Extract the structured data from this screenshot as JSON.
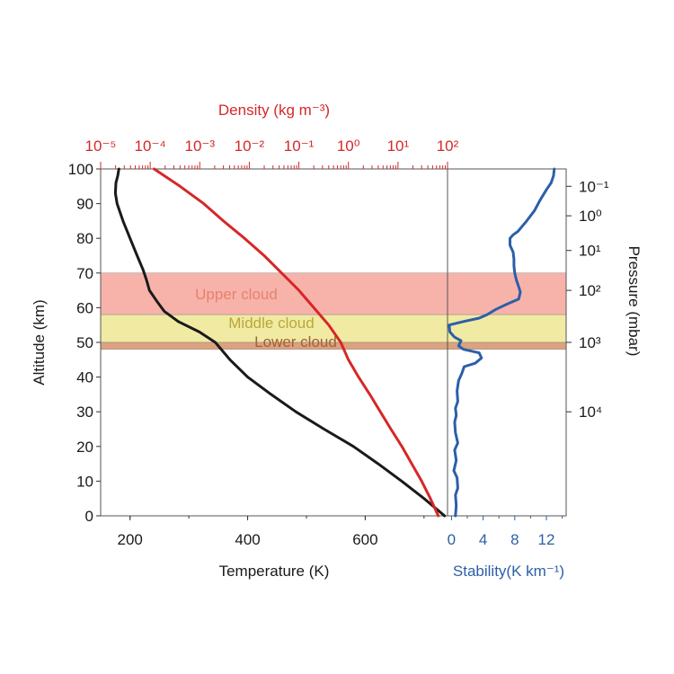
{
  "chart_data": {
    "type": "line",
    "colors": {
      "temperature": "#1a1a1a",
      "density": "#d62728",
      "stability": "#2c5fa8",
      "upper_cloud": "#f7b3aa",
      "middle_cloud": "#f1eaa3",
      "lower_cloud": "#dca27e",
      "upper_cloud_label": "#e8806f",
      "middle_cloud_label": "#b8a838",
      "lower_cloud_label": "#a0603a"
    },
    "ylabel": "Altitude (km)",
    "ylim": [
      0,
      100
    ],
    "yticks": [
      "0",
      "10",
      "20",
      "30",
      "40",
      "50",
      "60",
      "70",
      "80",
      "90",
      "100"
    ],
    "temperature_axis": {
      "label": "Temperature (K)",
      "xlim": [
        150,
        740
      ],
      "ticks": [
        "200",
        "400",
        "600"
      ]
    },
    "density_axis": {
      "label": "Density (kg m⁻³)",
      "scale": "log",
      "xlim": [
        1e-05,
        100
      ],
      "ticks": [
        "10⁻⁵",
        "10⁻⁴",
        "10⁻³",
        "10⁻²",
        "10⁻¹",
        "10⁰",
        "10¹",
        "10²"
      ]
    },
    "stability_axis": {
      "label": "Stability(K km⁻¹)",
      "xlim": [
        -0.5,
        14.5
      ],
      "ticks": [
        "0",
        "4",
        "8",
        "12"
      ]
    },
    "pressure_axis": {
      "label": "Pressure (mbar)",
      "ticks": [
        {
          "label": "10⁻¹",
          "altitude": 95
        },
        {
          "label": "10⁰",
          "altitude": 86.5
        },
        {
          "label": "10¹",
          "altitude": 76.5
        },
        {
          "label": "10²",
          "altitude": 65
        },
        {
          "label": "10³",
          "altitude": 50
        },
        {
          "label": "10⁴",
          "altitude": 30
        }
      ]
    },
    "cloud_layers": [
      {
        "name": "Upper cloud",
        "bottom": 58,
        "top": 70
      },
      {
        "name": "Middle cloud",
        "bottom": 50,
        "top": 58
      },
      {
        "name": "Lower cloud",
        "bottom": 48,
        "top": 50
      }
    ],
    "series": [
      {
        "name": "Temperature",
        "axis": "temperature",
        "points": [
          [
            735,
            0
          ],
          [
            700,
            5
          ],
          [
            662,
            10
          ],
          [
            622,
            15
          ],
          [
            580,
            20
          ],
          [
            530,
            25
          ],
          [
            482,
            30
          ],
          [
            440,
            35
          ],
          [
            400,
            40
          ],
          [
            370,
            45
          ],
          [
            345,
            50
          ],
          [
            318,
            53
          ],
          [
            282,
            56
          ],
          [
            258,
            59
          ],
          [
            245,
            62
          ],
          [
            233,
            65
          ],
          [
            228,
            68
          ],
          [
            222,
            71
          ],
          [
            212,
            75
          ],
          [
            200,
            80
          ],
          [
            188,
            85
          ],
          [
            178,
            90
          ],
          [
            175,
            93
          ],
          [
            176,
            96
          ],
          [
            179,
            98
          ],
          [
            181,
            100
          ]
        ]
      },
      {
        "name": "Density",
        "axis": "density",
        "points": [
          [
            65,
            0
          ],
          [
            45,
            5
          ],
          [
            30,
            10
          ],
          [
            19,
            15
          ],
          [
            12,
            20
          ],
          [
            7.2,
            25
          ],
          [
            4.4,
            30
          ],
          [
            2.7,
            35
          ],
          [
            1.6,
            40
          ],
          [
            1.0,
            45
          ],
          [
            0.7,
            50
          ],
          [
            0.4,
            55
          ],
          [
            0.2,
            60
          ],
          [
            0.1,
            65
          ],
          [
            0.045,
            70
          ],
          [
            0.02,
            75
          ],
          [
            0.008,
            80
          ],
          [
            0.003,
            85
          ],
          [
            0.0012,
            90
          ],
          [
            0.0004,
            95
          ],
          [
            0.00012,
            100
          ]
        ]
      },
      {
        "name": "Stability",
        "axis": "stability",
        "points": [
          [
            0.5,
            0
          ],
          [
            0.6,
            3
          ],
          [
            0.5,
            6
          ],
          [
            0.8,
            8
          ],
          [
            0.7,
            11
          ],
          [
            0.3,
            13
          ],
          [
            0.6,
            16
          ],
          [
            0.4,
            19
          ],
          [
            0.8,
            21
          ],
          [
            0.5,
            24
          ],
          [
            0.4,
            27
          ],
          [
            0.6,
            29
          ],
          [
            0.5,
            31
          ],
          [
            0.8,
            33
          ],
          [
            0.7,
            36
          ],
          [
            0.9,
            39
          ],
          [
            1.3,
            41
          ],
          [
            1.6,
            43
          ],
          [
            3.0,
            44
          ],
          [
            3.8,
            45.5
          ],
          [
            3.5,
            47
          ],
          [
            1.5,
            48
          ],
          [
            0.9,
            49
          ],
          [
            1.2,
            50.5
          ],
          [
            0.4,
            51.5
          ],
          [
            -0.2,
            53
          ],
          [
            -0.3,
            55
          ],
          [
            1.5,
            56
          ],
          [
            3.5,
            57
          ],
          [
            4.5,
            58
          ],
          [
            5.6,
            59.5
          ],
          [
            7.0,
            61
          ],
          [
            8.5,
            62.5
          ],
          [
            8.7,
            64.5
          ],
          [
            8.5,
            66
          ],
          [
            8.2,
            68
          ],
          [
            8.0,
            70
          ],
          [
            7.9,
            72
          ],
          [
            7.9,
            74
          ],
          [
            7.8,
            76
          ],
          [
            7.4,
            78
          ],
          [
            7.4,
            80
          ],
          [
            7.8,
            81
          ],
          [
            8.4,
            82
          ],
          [
            9.5,
            85
          ],
          [
            10.5,
            88
          ],
          [
            11.2,
            91
          ],
          [
            12.0,
            94
          ],
          [
            12.6,
            96
          ],
          [
            12.9,
            98
          ],
          [
            13.0,
            100
          ]
        ]
      }
    ]
  }
}
